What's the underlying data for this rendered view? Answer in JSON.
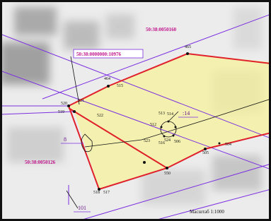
{
  "parcels": [
    "50:38:0050160",
    "50:38:0000000:10976",
    "50:38:0050126"
  ],
  "callouts": [
    "8",
    ":14",
    "101"
  ],
  "points": [
    "465",
    "464",
    "515",
    "520",
    "521",
    "519",
    "522",
    "512",
    "513",
    "514",
    "523",
    "524",
    "516",
    "506",
    "505",
    "504",
    "550",
    "518",
    "517"
  ],
  "scale": "Масштаб 1:1000"
}
